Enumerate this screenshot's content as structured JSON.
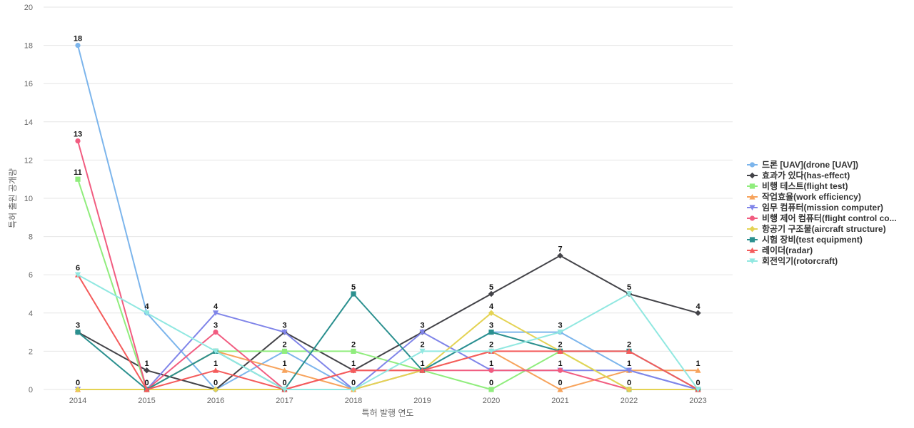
{
  "chart_data": {
    "type": "line",
    "title": "",
    "xlabel": "특허 발행 연도",
    "ylabel": "특허 출원 공개량",
    "categories": [
      "2014",
      "2015",
      "2016",
      "2017",
      "2018",
      "2019",
      "2020",
      "2021",
      "2022",
      "2023"
    ],
    "ylim": [
      0,
      20
    ],
    "yticks": [
      0,
      2,
      4,
      6,
      8,
      10,
      12,
      14,
      16,
      18,
      20
    ],
    "grid": true,
    "legend_position": "right",
    "series": [
      {
        "name": "드론 [UAV](drone [UAV])",
        "color": "#7cb5ec",
        "marker": "circle",
        "values": [
          18,
          4,
          0,
          2,
          0,
          1,
          3,
          3,
          1,
          0
        ]
      },
      {
        "name": "효과가 있다(has-effect)",
        "color": "#434348",
        "marker": "diamond",
        "values": [
          3,
          1,
          0,
          3,
          1,
          3,
          5,
          7,
          5,
          4
        ]
      },
      {
        "name": "비행 테스트(flight test)",
        "color": "#90ed7d",
        "marker": "square",
        "values": [
          11,
          0,
          2,
          2,
          2,
          1,
          0,
          2,
          0,
          0
        ]
      },
      {
        "name": "작업효율(work efficiency)",
        "color": "#f7a35c",
        "marker": "triangle",
        "values": [
          0,
          0,
          2,
          1,
          0,
          1,
          2,
          0,
          1,
          1
        ]
      },
      {
        "name": "임무 컴퓨터(mission computer)",
        "color": "#8085e9",
        "marker": "triangle-down",
        "values": [
          0,
          0,
          4,
          3,
          0,
          3,
          1,
          1,
          1,
          0
        ]
      },
      {
        "name": "비행 제어 컴퓨터(flight control co...",
        "color": "#f15c80",
        "marker": "circle",
        "values": [
          13,
          0,
          3,
          0,
          1,
          1,
          1,
          1,
          0,
          0
        ]
      },
      {
        "name": "항공기 구조물(aircraft structure)",
        "color": "#e4d354",
        "marker": "diamond",
        "values": [
          0,
          0,
          0,
          0,
          0,
          1,
          4,
          2,
          0,
          0
        ]
      },
      {
        "name": "시험 장비(test equipment)",
        "color": "#2b908f",
        "marker": "square",
        "values": [
          3,
          0,
          2,
          0,
          5,
          1,
          3,
          2,
          2,
          0
        ]
      },
      {
        "name": "레이더(radar)",
        "color": "#f45b5b",
        "marker": "triangle",
        "values": [
          6,
          0,
          1,
          0,
          1,
          1,
          2,
          2,
          2,
          0
        ]
      },
      {
        "name": "회전익기(rotorcraft)",
        "color": "#91e8e1",
        "marker": "triangle-down",
        "values": [
          6,
          4,
          2,
          0,
          0,
          2,
          2,
          3,
          5,
          0
        ]
      }
    ],
    "data_labels": [
      {
        "x": "2014",
        "y": 18,
        "text": "18"
      },
      {
        "x": "2014",
        "y": 13,
        "text": "13"
      },
      {
        "x": "2014",
        "y": 11,
        "text": "11"
      },
      {
        "x": "2014",
        "y": 6,
        "text": "6"
      },
      {
        "x": "2014",
        "y": 3,
        "text": "3"
      },
      {
        "x": "2014",
        "y": 0,
        "text": "0"
      },
      {
        "x": "2015",
        "y": 4,
        "text": "4"
      },
      {
        "x": "2015",
        "y": 1,
        "text": "1"
      },
      {
        "x": "2015",
        "y": 0,
        "text": "0"
      },
      {
        "x": "2016",
        "y": 4,
        "text": "4"
      },
      {
        "x": "2016",
        "y": 3,
        "text": "3"
      },
      {
        "x": "2016",
        "y": 1,
        "text": "1"
      },
      {
        "x": "2016",
        "y": 0,
        "text": "0"
      },
      {
        "x": "2017",
        "y": 3,
        "text": "3"
      },
      {
        "x": "2017",
        "y": 2,
        "text": "2"
      },
      {
        "x": "2017",
        "y": 1,
        "text": "1"
      },
      {
        "x": "2017",
        "y": 0,
        "text": "0"
      },
      {
        "x": "2018",
        "y": 5,
        "text": "5"
      },
      {
        "x": "2018",
        "y": 2,
        "text": "2"
      },
      {
        "x": "2018",
        "y": 1,
        "text": "1"
      },
      {
        "x": "2018",
        "y": 0,
        "text": "0"
      },
      {
        "x": "2019",
        "y": 3,
        "text": "3"
      },
      {
        "x": "2019",
        "y": 2,
        "text": "2"
      },
      {
        "x": "2019",
        "y": 1,
        "text": "1"
      },
      {
        "x": "2020",
        "y": 5,
        "text": "5"
      },
      {
        "x": "2020",
        "y": 4,
        "text": "4"
      },
      {
        "x": "2020",
        "y": 3,
        "text": "3"
      },
      {
        "x": "2020",
        "y": 2,
        "text": "2"
      },
      {
        "x": "2020",
        "y": 1,
        "text": "1"
      },
      {
        "x": "2020",
        "y": 0,
        "text": "0"
      },
      {
        "x": "2021",
        "y": 7,
        "text": "7"
      },
      {
        "x": "2021",
        "y": 3,
        "text": "3"
      },
      {
        "x": "2021",
        "y": 2,
        "text": "2"
      },
      {
        "x": "2021",
        "y": 1,
        "text": "1"
      },
      {
        "x": "2021",
        "y": 0,
        "text": "0"
      },
      {
        "x": "2022",
        "y": 5,
        "text": "5"
      },
      {
        "x": "2022",
        "y": 2,
        "text": "2"
      },
      {
        "x": "2022",
        "y": 1,
        "text": "1"
      },
      {
        "x": "2022",
        "y": 0,
        "text": "0"
      },
      {
        "x": "2023",
        "y": 4,
        "text": "4"
      },
      {
        "x": "2023",
        "y": 1,
        "text": "1"
      },
      {
        "x": "2023",
        "y": 0,
        "text": "0"
      }
    ]
  }
}
